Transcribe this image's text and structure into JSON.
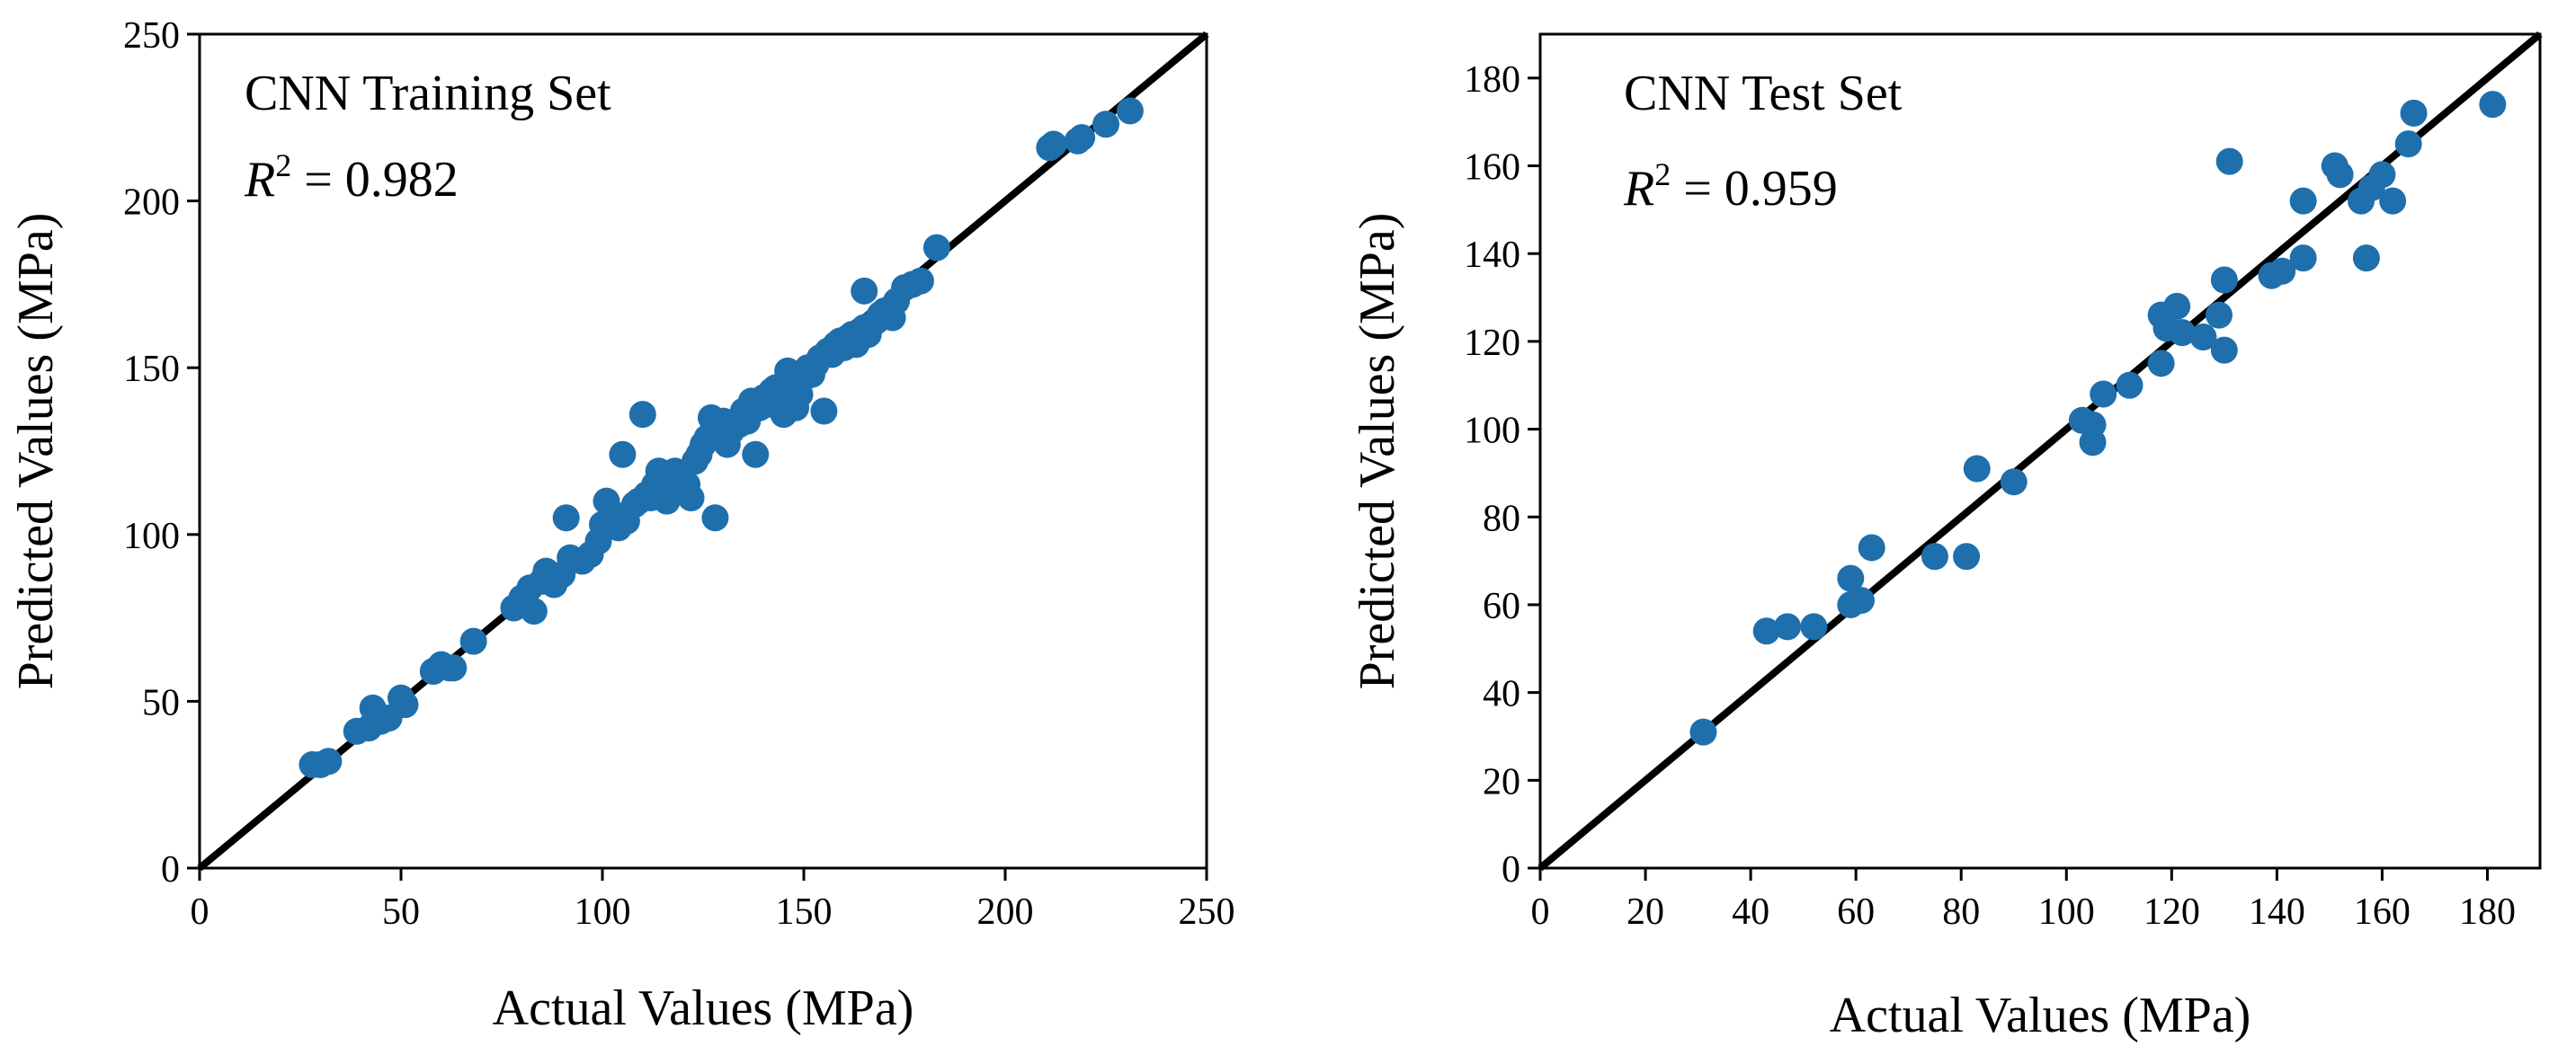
{
  "chart_data": [
    {
      "type": "scatter",
      "title": "CNN Training Set",
      "r2_symbol": "R",
      "r2_exponent": "2",
      "r2_text": " = 0.982",
      "xlabel": "Actual Values (MPa)",
      "ylabel": "Predicted Values (MPa)",
      "xlim": [
        0,
        250
      ],
      "ylim": [
        0,
        250
      ],
      "xticks": [
        0,
        50,
        100,
        150,
        200,
        250
      ],
      "yticks": [
        0,
        50,
        100,
        150,
        200,
        250
      ],
      "reference_line": "y = x",
      "color": "#1f6fad",
      "points": [
        [
          28,
          31
        ],
        [
          30,
          31
        ],
        [
          32,
          32
        ],
        [
          39,
          41
        ],
        [
          42,
          42
        ],
        [
          43,
          48
        ],
        [
          45,
          44
        ],
        [
          47,
          45
        ],
        [
          50,
          51
        ],
        [
          51,
          49
        ],
        [
          58,
          59
        ],
        [
          60,
          61
        ],
        [
          62,
          60
        ],
        [
          63,
          60
        ],
        [
          68,
          68
        ],
        [
          78,
          78
        ],
        [
          80,
          81
        ],
        [
          82,
          84
        ],
        [
          83,
          77
        ],
        [
          85,
          86
        ],
        [
          86,
          89
        ],
        [
          88,
          85
        ],
        [
          90,
          88
        ],
        [
          91,
          105
        ],
        [
          92,
          93
        ],
        [
          95,
          92
        ],
        [
          97,
          94
        ],
        [
          99,
          98
        ],
        [
          100,
          103
        ],
        [
          101,
          110
        ],
        [
          103,
          106
        ],
        [
          104,
          102
        ],
        [
          105,
          124
        ],
        [
          106,
          104
        ],
        [
          108,
          109
        ],
        [
          109,
          110
        ],
        [
          110,
          136
        ],
        [
          111,
          112
        ],
        [
          112,
          111
        ],
        [
          113,
          115
        ],
        [
          114,
          119
        ],
        [
          115,
          113
        ],
        [
          116,
          110
        ],
        [
          117,
          116
        ],
        [
          118,
          119
        ],
        [
          119,
          113
        ],
        [
          120,
          117
        ],
        [
          121,
          115
        ],
        [
          122,
          111
        ],
        [
          123,
          122
        ],
        [
          124,
          124
        ],
        [
          125,
          127
        ],
        [
          126,
          129
        ],
        [
          127,
          135
        ],
        [
          128,
          105
        ],
        [
          129,
          130
        ],
        [
          130,
          134
        ],
        [
          131,
          127
        ],
        [
          132,
          131
        ],
        [
          134,
          133
        ],
        [
          135,
          137
        ],
        [
          136,
          134
        ],
        [
          137,
          140
        ],
        [
          138,
          124
        ],
        [
          139,
          138
        ],
        [
          140,
          141
        ],
        [
          141,
          139
        ],
        [
          142,
          143
        ],
        [
          143,
          144
        ],
        [
          144,
          140
        ],
        [
          145,
          136
        ],
        [
          146,
          149
        ],
        [
          147,
          145
        ],
        [
          148,
          138
        ],
        [
          149,
          142
        ],
        [
          150,
          147
        ],
        [
          151,
          150
        ],
        [
          152,
          148
        ],
        [
          153,
          151
        ],
        [
          154,
          153
        ],
        [
          155,
          137
        ],
        [
          156,
          155
        ],
        [
          157,
          154
        ],
        [
          158,
          157
        ],
        [
          159,
          158
        ],
        [
          160,
          156
        ],
        [
          161,
          159
        ],
        [
          162,
          160
        ],
        [
          163,
          157
        ],
        [
          164,
          161
        ],
        [
          165,
          162
        ],
        [
          166,
          160
        ],
        [
          167,
          163
        ],
        [
          168,
          164
        ],
        [
          169,
          166
        ],
        [
          170,
          167
        ],
        [
          172,
          165
        ],
        [
          173,
          170
        ],
        [
          175,
          174
        ],
        [
          177,
          175
        ],
        [
          179,
          176
        ],
        [
          183,
          186
        ],
        [
          165,
          173
        ],
        [
          211,
          216
        ],
        [
          212,
          217
        ],
        [
          218,
          218
        ],
        [
          219,
          219
        ],
        [
          225,
          223
        ],
        [
          231,
          227
        ]
      ]
    },
    {
      "type": "scatter",
      "title": "CNN Test Set",
      "r2_symbol": "R",
      "r2_exponent": "2",
      "r2_text": " = 0.959",
      "xlabel": "Actual Values (MPa)",
      "ylabel": "Predicted Values (MPa)",
      "xlim": [
        0,
        190
      ],
      "ylim": [
        0,
        190
      ],
      "xticks": [
        0,
        20,
        40,
        60,
        80,
        100,
        120,
        140,
        160,
        180
      ],
      "yticks": [
        0,
        20,
        40,
        60,
        80,
        100,
        120,
        140,
        160,
        180
      ],
      "reference_line": "y = x",
      "color": "#1f6fad",
      "points": [
        [
          31,
          31
        ],
        [
          43,
          54
        ],
        [
          47,
          55
        ],
        [
          52,
          55
        ],
        [
          59,
          60
        ],
        [
          59,
          66
        ],
        [
          61,
          61
        ],
        [
          63,
          73
        ],
        [
          75,
          71
        ],
        [
          81,
          71
        ],
        [
          83,
          91
        ],
        [
          90,
          88
        ],
        [
          103,
          102
        ],
        [
          105,
          97
        ],
        [
          105,
          101
        ],
        [
          107,
          108
        ],
        [
          112,
          110
        ],
        [
          118,
          115
        ],
        [
          118,
          126
        ],
        [
          119,
          123
        ],
        [
          121,
          128
        ],
        [
          122,
          122
        ],
        [
          126,
          121
        ],
        [
          129,
          126
        ],
        [
          130,
          118
        ],
        [
          130,
          134
        ],
        [
          131,
          161
        ],
        [
          139,
          135
        ],
        [
          141,
          136
        ],
        [
          145,
          152
        ],
        [
          145,
          139
        ],
        [
          151,
          160
        ],
        [
          152,
          158
        ],
        [
          156,
          152
        ],
        [
          157,
          139
        ],
        [
          158,
          155
        ],
        [
          160,
          158
        ],
        [
          162,
          152
        ],
        [
          165,
          165
        ],
        [
          166,
          172
        ],
        [
          181,
          174
        ]
      ]
    }
  ]
}
